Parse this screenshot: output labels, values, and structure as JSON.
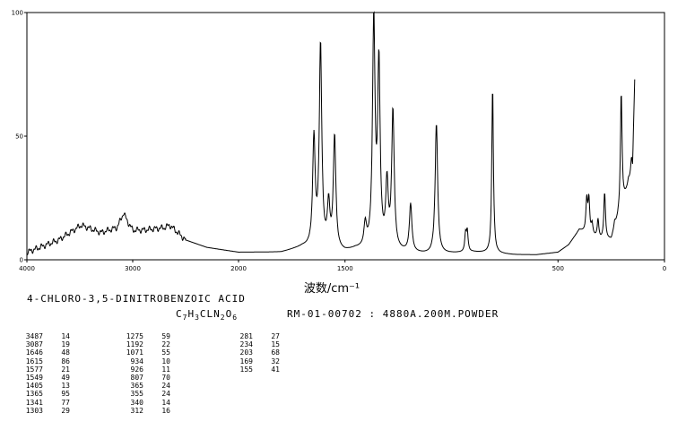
{
  "chart_data": {
    "type": "line",
    "xlabel": "波数/cm⁻¹",
    "ylabel": "",
    "xlim": [
      4000,
      0
    ],
    "ylim": [
      0,
      100
    ],
    "x_ticks": [
      4000,
      3000,
      2000,
      1500,
      500,
      0
    ],
    "x_tick_labels": [
      "4000",
      "3000",
      "2000",
      "1500",
      "500",
      "0"
    ],
    "y_ticks": [
      0,
      50,
      100
    ],
    "y_tick_labels": [
      "0",
      "50",
      "100"
    ],
    "grid": false,
    "legend": "none",
    "line_color": "#000000",
    "peaks": [
      {
        "x": 3087,
        "y": 19
      },
      {
        "x": 1646,
        "y": 48
      },
      {
        "x": 1615,
        "y": 86
      },
      {
        "x": 1577,
        "y": 21
      },
      {
        "x": 1549,
        "y": 49
      },
      {
        "x": 1405,
        "y": 13
      },
      {
        "x": 1365,
        "y": 95
      },
      {
        "x": 1341,
        "y": 77
      },
      {
        "x": 1303,
        "y": 29
      },
      {
        "x": 1275,
        "y": 59
      },
      {
        "x": 1192,
        "y": 22
      },
      {
        "x": 1071,
        "y": 55
      },
      {
        "x": 934,
        "y": 10
      },
      {
        "x": 926,
        "y": 11
      },
      {
        "x": 807,
        "y": 70
      },
      {
        "x": 365,
        "y": 24
      },
      {
        "x": 355,
        "y": 24
      },
      {
        "x": 340,
        "y": 14
      },
      {
        "x": 312,
        "y": 16
      },
      {
        "x": 281,
        "y": 27
      },
      {
        "x": 234,
        "y": 15
      },
      {
        "x": 203,
        "y": 68
      },
      {
        "x": 169,
        "y": 32
      },
      {
        "x": 155,
        "y": 41
      }
    ],
    "baseline": [
      {
        "x": 4000,
        "y": 3
      },
      {
        "x": 3700,
        "y": 8
      },
      {
        "x": 3487,
        "y": 14
      },
      {
        "x": 3300,
        "y": 11
      },
      {
        "x": 3150,
        "y": 13
      },
      {
        "x": 3087,
        "y": 18
      },
      {
        "x": 3000,
        "y": 12
      },
      {
        "x": 2900,
        "y": 12
      },
      {
        "x": 2700,
        "y": 13
      },
      {
        "x": 2650,
        "y": 14
      },
      {
        "x": 2500,
        "y": 8
      },
      {
        "x": 2300,
        "y": 5
      },
      {
        "x": 2000,
        "y": 3
      },
      {
        "x": 1800,
        "y": 3
      },
      {
        "x": 1700,
        "y": 5
      },
      {
        "x": 1500,
        "y": 3
      },
      {
        "x": 1450,
        "y": 4
      },
      {
        "x": 1250,
        "y": 3
      },
      {
        "x": 1100,
        "y": 2
      },
      {
        "x": 900,
        "y": 3
      },
      {
        "x": 700,
        "y": 2
      },
      {
        "x": 600,
        "y": 2
      },
      {
        "x": 500,
        "y": 3
      },
      {
        "x": 450,
        "y": 6
      },
      {
        "x": 400,
        "y": 12
      },
      {
        "x": 300,
        "y": 8
      },
      {
        "x": 250,
        "y": 8
      },
      {
        "x": 150,
        "y": 35
      },
      {
        "x": 140,
        "y": 72
      }
    ]
  },
  "compound_name": "4-CHLORO-3,5-DINITROBENZOIC ACID",
  "formula": {
    "c": "C",
    "c_n": "7",
    "h": "H",
    "h_n": "3",
    "cln": "CLN",
    "cln_n": "2",
    "o": "O",
    "o_n": "6"
  },
  "sample_info": "RM-01-00702 : 4880A.200M.POWDER",
  "peak_table": [
    [
      {
        "wn": "3487",
        "i": "14"
      },
      {
        "wn": "3087",
        "i": "19"
      },
      {
        "wn": "1646",
        "i": "48"
      },
      {
        "wn": "1615",
        "i": "86"
      },
      {
        "wn": "1577",
        "i": "21"
      },
      {
        "wn": "1549",
        "i": "49"
      },
      {
        "wn": "1405",
        "i": "13"
      },
      {
        "wn": "1365",
        "i": "95"
      },
      {
        "wn": "1341",
        "i": "77"
      },
      {
        "wn": "1303",
        "i": "29"
      }
    ],
    [
      {
        "wn": "1275",
        "i": "59"
      },
      {
        "wn": "1192",
        "i": "22"
      },
      {
        "wn": "1071",
        "i": "55"
      },
      {
        "wn": "934",
        "i": "10"
      },
      {
        "wn": "926",
        "i": "11"
      },
      {
        "wn": "807",
        "i": "70"
      },
      {
        "wn": "365",
        "i": "24"
      },
      {
        "wn": "355",
        "i": "24"
      },
      {
        "wn": "340",
        "i": "14"
      },
      {
        "wn": "312",
        "i": "16"
      }
    ],
    [
      {
        "wn": "281",
        "i": "27"
      },
      {
        "wn": "234",
        "i": "15"
      },
      {
        "wn": "203",
        "i": "68"
      },
      {
        "wn": "169",
        "i": "32"
      },
      {
        "wn": "155",
        "i": "41"
      }
    ]
  ]
}
